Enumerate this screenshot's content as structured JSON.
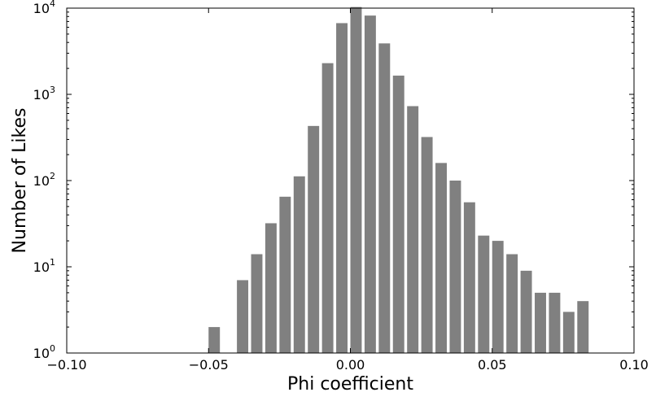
{
  "chart_data": {
    "type": "bar",
    "xlabel": "Phi coefficient",
    "ylabel": "Number of Likes",
    "xlim": [
      -0.1,
      0.1
    ],
    "ylim": [
      1,
      10000
    ],
    "yscale": "log",
    "bar_color": "#808080",
    "grid": false,
    "xticks": [
      {
        "value": -0.1,
        "label": "−0.10"
      },
      {
        "value": -0.05,
        "label": "−0.05"
      },
      {
        "value": 0.0,
        "label": "0.00"
      },
      {
        "value": 0.05,
        "label": "0.05"
      },
      {
        "value": 0.1,
        "label": "0.10"
      }
    ],
    "yticks": [
      {
        "value": 1,
        "base": "10",
        "exp": "0"
      },
      {
        "value": 10,
        "base": "10",
        "exp": "1"
      },
      {
        "value": 100,
        "base": "10",
        "exp": "2"
      },
      {
        "value": 1000,
        "base": "10",
        "exp": "3"
      },
      {
        "value": 10000,
        "base": "10",
        "exp": "4"
      }
    ],
    "bin_width": 0.005,
    "bins": [
      {
        "x": -0.05,
        "value": 2
      },
      {
        "x": -0.04,
        "value": 7
      },
      {
        "x": -0.035,
        "value": 14
      },
      {
        "x": -0.03,
        "value": 32
      },
      {
        "x": -0.025,
        "value": 65
      },
      {
        "x": -0.02,
        "value": 112
      },
      {
        "x": -0.015,
        "value": 430
      },
      {
        "x": -0.01,
        "value": 2300
      },
      {
        "x": -0.005,
        "value": 6700
      },
      {
        "x": 0.0,
        "value": 10300
      },
      {
        "x": 0.005,
        "value": 8200
      },
      {
        "x": 0.01,
        "value": 3900
      },
      {
        "x": 0.015,
        "value": 1650
      },
      {
        "x": 0.02,
        "value": 730
      },
      {
        "x": 0.025,
        "value": 320
      },
      {
        "x": 0.03,
        "value": 160
      },
      {
        "x": 0.035,
        "value": 100
      },
      {
        "x": 0.04,
        "value": 56
      },
      {
        "x": 0.045,
        "value": 23
      },
      {
        "x": 0.05,
        "value": 20
      },
      {
        "x": 0.055,
        "value": 14
      },
      {
        "x": 0.06,
        "value": 9
      },
      {
        "x": 0.065,
        "value": 5
      },
      {
        "x": 0.07,
        "value": 5
      },
      {
        "x": 0.075,
        "value": 3
      },
      {
        "x": 0.08,
        "value": 4
      }
    ]
  }
}
